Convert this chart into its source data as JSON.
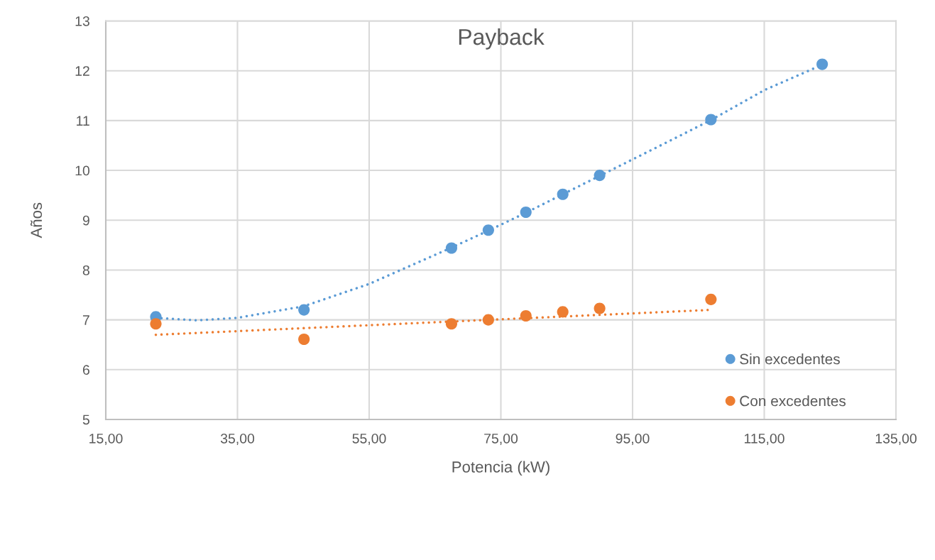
{
  "chart_data": {
    "type": "scatter",
    "title": "Payback",
    "xlabel": "Potencia (kW)",
    "ylabel": "Años",
    "xlim": [
      15,
      135
    ],
    "xticks": [
      {
        "value": 15,
        "label": "15,00"
      },
      {
        "value": 35,
        "label": "35,00"
      },
      {
        "value": 55,
        "label": "55,00"
      },
      {
        "value": 75,
        "label": "75,00"
      },
      {
        "value": 95,
        "label": "95,00"
      },
      {
        "value": 115,
        "label": "115,00"
      },
      {
        "value": 135,
        "label": "135,00"
      }
    ],
    "ylim": [
      5,
      13
    ],
    "yticks": [
      5,
      6,
      7,
      8,
      9,
      10,
      11,
      12,
      13
    ],
    "grid": true,
    "legend": "bottom right",
    "series": [
      {
        "name": "Sin excedentes",
        "color": "#5b9bd5",
        "marker": "circle",
        "x": [
          22.6,
          45.1,
          67.5,
          73.1,
          78.8,
          84.4,
          90.0,
          106.9,
          123.8
        ],
        "values": [
          7.06,
          7.2,
          8.44,
          8.8,
          9.16,
          9.52,
          9.9,
          11.02,
          12.13
        ]
      },
      {
        "name": "Con excedentes",
        "color": "#ed7d31",
        "marker": "circle",
        "x": [
          22.6,
          45.1,
          67.5,
          73.1,
          78.8,
          84.4,
          90.0,
          106.9
        ],
        "values": [
          6.92,
          6.61,
          6.92,
          7.0,
          7.08,
          7.16,
          7.23,
          7.41
        ]
      },
      {
        "type": "line",
        "color": "#5b9bd5",
        "marker": "none",
        "line_style": "dotted",
        "x": [
          22.6,
          28.8,
          35,
          45,
          55,
          67.5,
          73.1,
          78.8,
          84.4,
          90.0,
          100,
          106.9,
          115,
          123.8
        ],
        "values": [
          7.04,
          6.99,
          7.04,
          7.27,
          7.72,
          8.45,
          8.79,
          9.15,
          9.52,
          9.89,
          10.55,
          11.01,
          11.61,
          12.12
        ]
      },
      {
        "type": "line",
        "color": "#ed7d31",
        "marker": "none",
        "line_style": "dotted",
        "x": [
          22.6,
          106.9
        ],
        "values": [
          6.7,
          7.2
        ]
      }
    ]
  }
}
